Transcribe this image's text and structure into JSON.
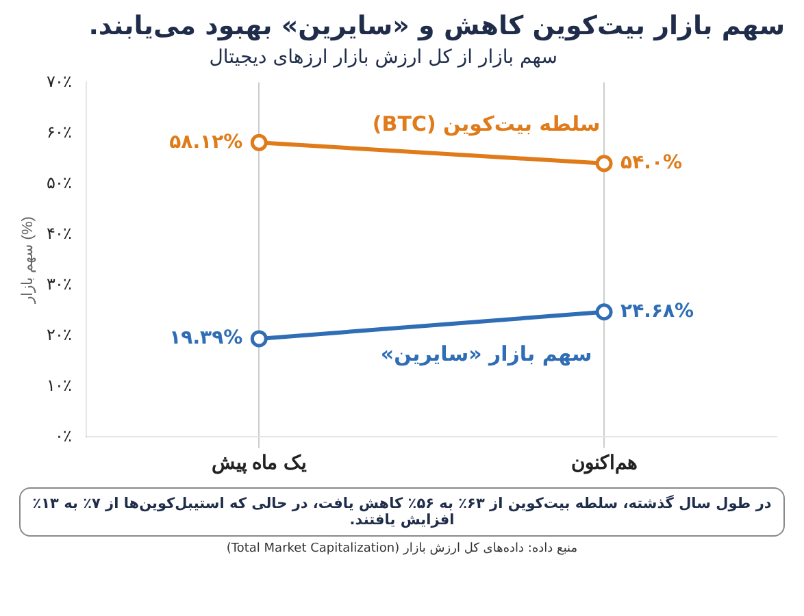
{
  "chart_data": {
    "type": "line",
    "title": "سهم بازار بیت‌کوین کاهش و «سایرین» بهبود می‌یابند.",
    "subtitle": "سهم بازار از کل ارزش بازار ارزهای دیجیتال",
    "ylabel": "سهم بازار (%)",
    "categories": [
      "یک ماه پیش",
      "هم‌اکنون"
    ],
    "series": [
      {
        "name": "سلطه بیت‌کوین (BTC)",
        "color": "#e07b1a",
        "values": [
          58.12,
          54.0
        ],
        "value_labels": [
          "۵۸.۱۲%",
          "۵۴.۰%"
        ]
      },
      {
        "name": "سهم بازار «سایرین»",
        "color": "#2f6db5",
        "values": [
          19.39,
          24.68
        ],
        "value_labels": [
          "۱۹.۳۹%",
          "۲۴.۶۸%"
        ]
      }
    ],
    "ylim": [
      0,
      70
    ],
    "yticks": [
      {
        "value": 0,
        "label": "۰٪"
      },
      {
        "value": 10,
        "label": "۱۰٪"
      },
      {
        "value": 20,
        "label": "۲۰٪"
      },
      {
        "value": 30,
        "label": "۳۰٪"
      },
      {
        "value": 40,
        "label": "۴۰٪"
      },
      {
        "value": 50,
        "label": "۵۰٪"
      },
      {
        "value": 60,
        "label": "۶۰٪"
      },
      {
        "value": 70,
        "label": "۷۰٪"
      }
    ],
    "grid": "x",
    "legend": false,
    "marker": "circle",
    "line_style": "solid",
    "annotations": [
      "در طول سال گذشته، سلطه بیت‌کوین از ۶۳٪ به ۵۶٪ کاهش یافت، در حالی که استیبل‌کوین‌ها از ۷٪ به ۱۳٪ افزایش یافتند.",
      "منبع داده: داده‌های کل ارزش بازار (Total Market Capitalization)"
    ]
  }
}
